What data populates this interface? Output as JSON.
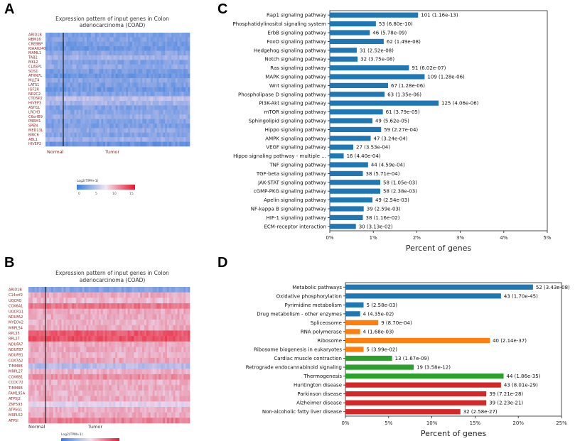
{
  "panels": {
    "a": {
      "letter": "A",
      "title_line1": "Expression pattern of input genes in Colon",
      "title_line2": "adenocarcinoma (COAD)",
      "genes": [
        "ARID1B",
        "RBM16",
        "CREBBP",
        "KIAA0240",
        "MAML1",
        "TAB2",
        "MKL2",
        "CLASP1",
        "SOS1",
        "ATXN7L",
        "MLLT4",
        "LATS1",
        "IGF2R",
        "NR2C2",
        "CTDSP2",
        "HIVEP3",
        "ASH1L",
        "LRCH3",
        "C6orf89",
        "PBRM1",
        "SPEN",
        "MED13L",
        "BIRC6",
        "ABL1",
        "HIVEP2"
      ],
      "group_labels": [
        "Normal",
        "Tumor"
      ],
      "legend_title": "Log2(TPM+1)",
      "legend_ticks": [
        "0",
        "5",
        "10",
        "15"
      ],
      "colors": {
        "low": "#3b7ddd",
        "mid": "#e6c8e6",
        "high": "#e8142b"
      }
    },
    "b": {
      "letter": "B",
      "title_line1": "Expression pattern of input genes in Colon",
      "title_line2": "adenocarcinoma (COAD)",
      "genes": [
        "ARID1B",
        "C14orf2",
        "UQCRQ",
        "COX6A1",
        "UQCR11",
        "NDUFA2",
        "MYEOV2",
        "MRPL54",
        "RPL35",
        "RPL27",
        "NDUFA7",
        "NDUFB7",
        "NDUFB1",
        "COX7A2",
        "TIMM8B",
        "MRPL27",
        "COX6B1",
        "CCDC72",
        "TIMM8B",
        "FAM195A",
        "ATP5J2",
        "ZNF593",
        "ATP5G1",
        "MRPL52",
        "ATP5I"
      ],
      "group_labels": [
        "Normal",
        "Tumor"
      ],
      "legend_title": "Log2(TPM+1)"
    },
    "c": {
      "letter": "C",
      "xlabel": "Percent of genes"
    },
    "d": {
      "letter": "D",
      "xlabel": "Percent of genes"
    }
  },
  "chart_data": [
    {
      "type": "bar",
      "orientation": "horizontal",
      "title": "",
      "xlabel": "Percent of genes",
      "xlim": [
        0,
        5
      ],
      "xticks": [
        "0%",
        "1%",
        "2%",
        "3%",
        "4%",
        "5%"
      ],
      "categories": [
        "Rap1 signaling pathway",
        "Phosphatidylinositol signaling system",
        "ErbB signaling pathway",
        "FoxO signaling pathway",
        "Hedgehog signaling pathway",
        "Notch signaling pathway",
        "Ras signaling pathway",
        "MAPK signaling pathway",
        "Wnt signaling pathway",
        "Phospholipase D signaling pathway",
        "PI3K-Akt signaling pathway",
        "mTOR signaling pathway",
        "Sphingolipid signaling pathway",
        "Hippo signaling pathway",
        "AMPK signaling pathway",
        "VEGF signaling pathway",
        "Hippo signaling pathway - multiple ...",
        "TNF signaling pathway",
        "TGF-beta signaling pathway",
        "JAK-STAT signaling pathway",
        "cGMP-PKG signaling pathway",
        "Apelin signaling pathway",
        "NF-kappa B signaling pathway",
        "HIF-1 signaling pathway",
        "ECM-receptor interaction"
      ],
      "values": [
        2.03,
        1.06,
        0.92,
        1.24,
        0.62,
        0.64,
        1.82,
        2.18,
        1.34,
        1.26,
        2.5,
        1.22,
        0.98,
        1.18,
        0.94,
        0.54,
        0.32,
        0.88,
        0.76,
        1.16,
        1.16,
        0.98,
        0.78,
        0.76,
        0.6
      ],
      "labels": [
        "101 (1.16e-13)",
        "53 (6.80e-10)",
        "46 (5.78e-09)",
        "62 (1.49e-08)",
        "31 (2.52e-08)",
        "32 (3.75e-08)",
        "91 (6.02e-07)",
        "109 (1.28e-06)",
        "67 (1.28e-06)",
        "63 (1.35e-06)",
        "125 (4.06e-06)",
        "61 (3.79e-05)",
        "49 (5.62e-05)",
        "59 (2.27e-04)",
        "47 (3.24e-04)",
        "27 (3.53e-04)",
        "16 (4.40e-04)",
        "44 (4.59e-04)",
        "38 (5.71e-04)",
        "58 (1.05e-03)",
        "58 (2.38e-03)",
        "49 (2.54e-03)",
        "39 (2.59e-03)",
        "38 (1.16e-02)",
        "30 (3.13e-02)"
      ],
      "bar_colors": [
        "#1f77b4"
      ]
    },
    {
      "type": "bar",
      "orientation": "horizontal",
      "title": "",
      "xlabel": "Percent of genes",
      "xlim": [
        0,
        25
      ],
      "xticks": [
        "0%",
        "5%",
        "10%",
        "15%",
        "20%",
        "25%"
      ],
      "categories": [
        "Metabolic pathways",
        "Oxidative phosphorylation",
        "Pyrimidine metabolism",
        "Drug metabolism - other enzymes",
        "Spliceosome",
        "RNA polymerase",
        "Ribosome",
        "Ribosome biogenesis in eukaryotes",
        "Cardiac muscle contraction",
        "Retrograde endocannabinoid signaling",
        "Thermogenesis",
        "Huntington disease",
        "Parkinson disease",
        "Alzheimer disease",
        "Non-alcoholic fatty liver disease"
      ],
      "values": [
        21.7,
        18.0,
        2.1,
        1.7,
        3.8,
        1.7,
        16.7,
        2.1,
        5.4,
        7.9,
        18.3,
        18.0,
        16.3,
        16.3,
        13.3
      ],
      "labels": [
        "52 (3.43e-08)",
        "43 (1.70e-45)",
        "5 (2.58e-03)",
        "4 (4.35e-02)",
        "9 (8.70e-04)",
        "4 (1.68e-03)",
        "40 (2.14e-37)",
        "5 (3.99e-02)",
        "13 (1.67e-09)",
        "19 (3.58e-12)",
        "44 (1.86e-35)",
        "43 (8.01e-29)",
        "39 (7.21e-28)",
        "39 (2.23e-21)",
        "32 (2.58e-27)"
      ],
      "bar_colors": [
        "#1f77b4",
        "#1f77b4",
        "#1f77b4",
        "#1f77b4",
        "#ff7f0e",
        "#ff7f0e",
        "#ff7f0e",
        "#ff7f0e",
        "#2ca02c",
        "#2ca02c",
        "#2ca02c",
        "#d62728",
        "#d62728",
        "#d62728",
        "#d62728"
      ]
    }
  ]
}
